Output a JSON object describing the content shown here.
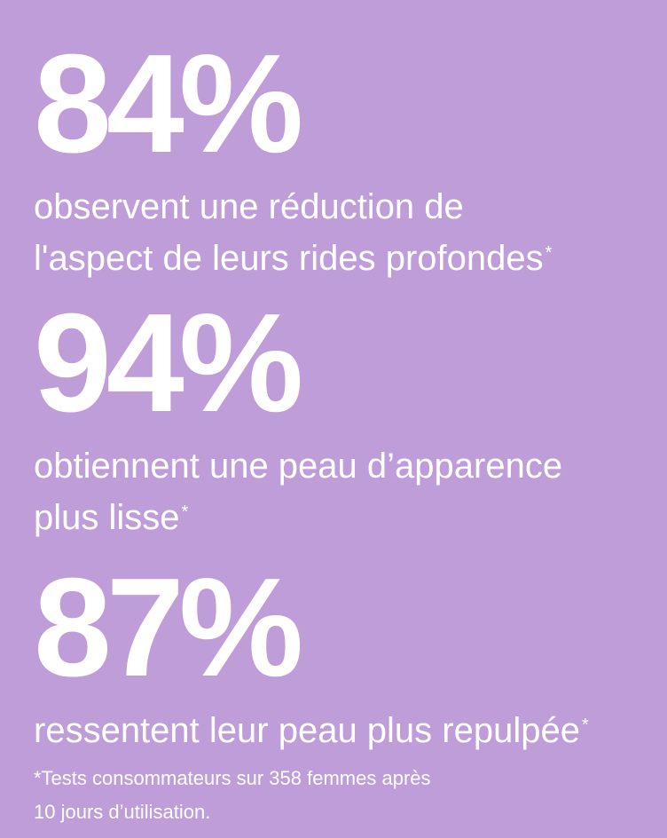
{
  "stats": [
    {
      "value": "84%",
      "line1": "observent une réduction de",
      "line2": "l'aspect de leurs rides profondes",
      "marker": "*"
    },
    {
      "value": "94%",
      "line1": "obtiennent une peau d’apparence",
      "line2": "plus lisse",
      "marker": "*"
    },
    {
      "value": "87%",
      "line1": "ressentent leur peau plus repulpée",
      "marker": "*"
    }
  ],
  "footnote": {
    "line1": "*Tests consommateurs sur 358 femmes après",
    "line2": "10 jours d’utilisation."
  },
  "colors": {
    "background": "#bf9dd8",
    "text": "#ffffff"
  }
}
